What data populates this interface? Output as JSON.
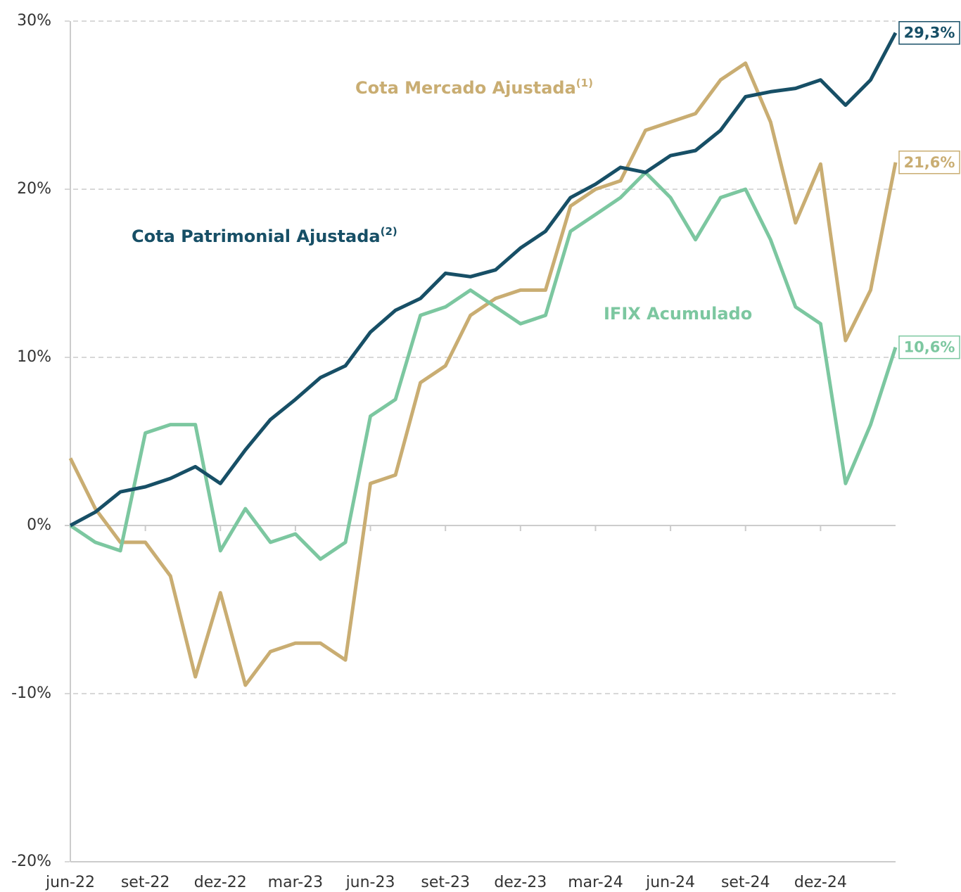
{
  "chart_data": {
    "type": "line",
    "categories": [
      "jun-22",
      null,
      null,
      "set-22",
      null,
      null,
      "dez-22",
      null,
      null,
      "mar-23",
      null,
      null,
      "jun-23",
      null,
      null,
      "set-23",
      null,
      null,
      "dez-23",
      null,
      null,
      "mar-24",
      null,
      null,
      "jun-24",
      null,
      null,
      "set-24",
      null,
      null,
      "dez-24",
      null,
      null,
      null
    ],
    "ylim": [
      -20,
      30
    ],
    "yticks": [
      {
        "value": -20,
        "label": "-20%"
      },
      {
        "value": -10,
        "label": "-10%"
      },
      {
        "value": 0,
        "label": "0%"
      },
      {
        "value": 10,
        "label": "10%"
      },
      {
        "value": 20,
        "label": "20%"
      },
      {
        "value": 30,
        "label": "30%"
      }
    ],
    "grid": true,
    "series": [
      {
        "name": "Cota Mercado Ajustada",
        "note": "(1)",
        "color": "#c9ad72",
        "values": [
          4,
          1,
          -1,
          -1,
          -3,
          -9,
          -4,
          -9.5,
          -7.5,
          -7,
          -7,
          -8,
          2.5,
          3,
          8.5,
          9.5,
          12.5,
          13.5,
          14,
          14,
          19,
          20,
          20.5,
          23.5,
          24,
          24.5,
          26.5,
          27.5,
          24,
          18,
          21.5,
          11,
          14,
          21.6
        ],
        "end_label": "21,6%"
      },
      {
        "name": "IFIX Acumulado",
        "color": "#7cc7a0",
        "values": [
          0,
          -1,
          -1.5,
          5.5,
          6,
          6,
          -1.5,
          1,
          -1,
          -0.5,
          -2,
          -1,
          6.5,
          7.5,
          12.5,
          13,
          14,
          13,
          12,
          12.5,
          17.5,
          18.5,
          19.5,
          21,
          19.5,
          17,
          19.5,
          20,
          17,
          13,
          12,
          2.5,
          6,
          10.6
        ],
        "end_label": "10,6%"
      },
      {
        "name": "Cota Patrimonial Ajustada",
        "note": "(2)",
        "color": "#174f66",
        "values": [
          0,
          0.8,
          2,
          2.3,
          2.8,
          3.5,
          2.5,
          4.5,
          6.3,
          7.5,
          8.8,
          9.5,
          11.5,
          12.8,
          13.5,
          15,
          14.8,
          15.2,
          16.5,
          17.5,
          19.5,
          20.3,
          21.3,
          21,
          22,
          22.3,
          23.5,
          25.5,
          25.8,
          26,
          26.5,
          25,
          26.5,
          29.3
        ],
        "end_label": "29,3%"
      }
    ]
  }
}
